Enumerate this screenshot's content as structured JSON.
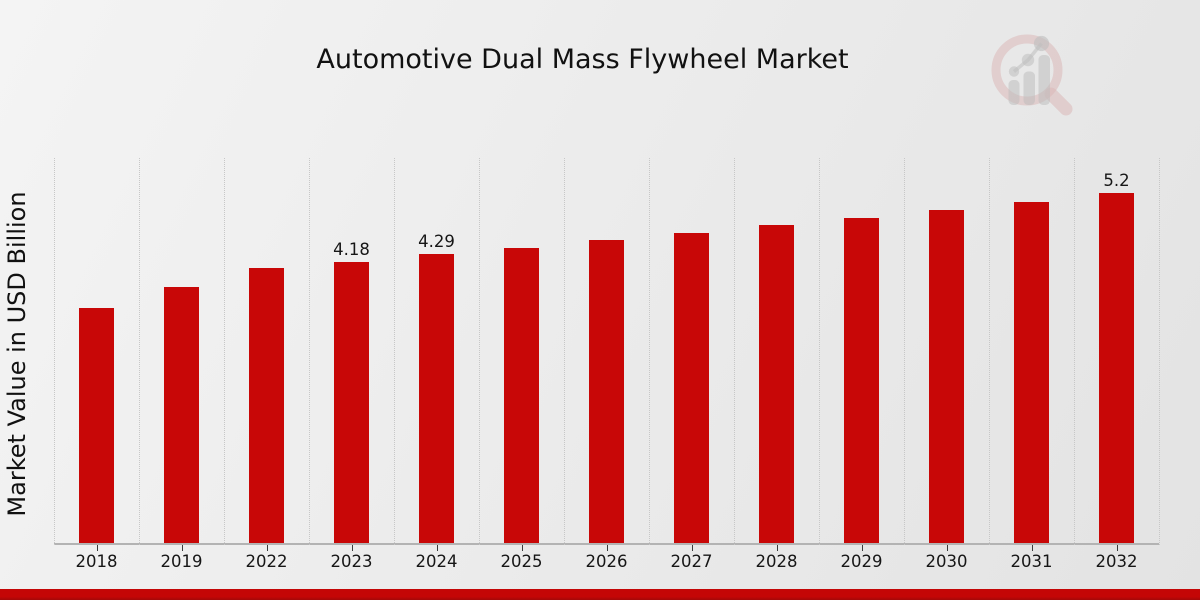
{
  "title": "Automotive Dual Mass Flywheel Market",
  "y_axis_label": "Market Value in USD Billion",
  "watermark_icon": "magnifier-bar-chart-logo",
  "colors": {
    "bar": "#c80707",
    "footer_band": "#c40606",
    "gridline": "#c7c7c7",
    "axis_line": "#b3b3b3",
    "text": "#161616",
    "background_start": "#f4f4f4",
    "background_end": "#e3e3e3"
  },
  "chart_data": {
    "type": "bar",
    "title": "Automotive Dual Mass Flywheel Market",
    "xlabel": "",
    "ylabel": "Market Value in USD Billion",
    "categories": [
      "2018",
      "2019",
      "2022",
      "2023",
      "2024",
      "2025",
      "2026",
      "2027",
      "2028",
      "2029",
      "2030",
      "2031",
      "2032"
    ],
    "values": [
      3.49,
      3.8,
      4.08,
      4.18,
      4.29,
      4.39,
      4.5,
      4.61,
      4.72,
      4.83,
      4.95,
      5.07,
      5.2
    ],
    "data_labels": {
      "2023": "4.18",
      "2024": "4.29",
      "2032": "5.2"
    },
    "ylim": [
      0,
      5.75
    ],
    "grid": "vertical-dotted",
    "legend": "none",
    "bar_color": "#c80707"
  }
}
